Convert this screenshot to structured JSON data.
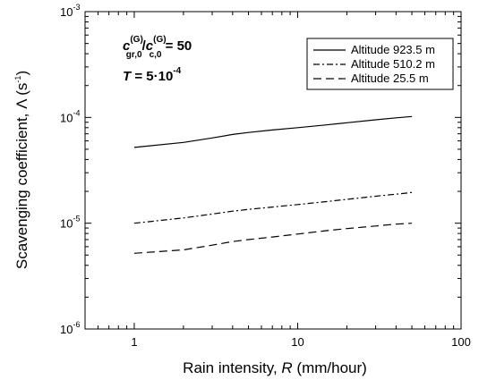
{
  "chart_data": {
    "type": "line",
    "xlabel": {
      "main": "Rain intensity, ",
      "var": "R",
      "unit": " (mm/hour)"
    },
    "ylabel": {
      "main": "Scavenging coefficient, Λ (s",
      "sup": "-1",
      "close": ")"
    },
    "x_scale": "log",
    "y_scale": "log",
    "xlim": [
      0.5,
      100
    ],
    "ylim": [
      1e-06,
      0.001
    ],
    "x_ticks": [
      {
        "value": 1,
        "label": "1"
      },
      {
        "value": 10,
        "label": "10"
      },
      {
        "value": 100,
        "label": "100"
      }
    ],
    "y_ticks": [
      {
        "value": 1e-06,
        "base": "10",
        "exp": "-6"
      },
      {
        "value": 1e-05,
        "base": "10",
        "exp": "-5"
      },
      {
        "value": 0.0001,
        "base": "10",
        "exp": "-4"
      },
      {
        "value": 0.001,
        "base": "10",
        "exp": "-3"
      }
    ],
    "grid": false,
    "legend_position": "top-right",
    "annotations": {
      "ratio": {
        "num_var": "c",
        "num_sub": "gr,0",
        "num_sup": "(G)",
        "slash": "/",
        "den_var": "c",
        "den_sub": "c,0",
        "den_sup": "(G)",
        "rest": " = 50"
      },
      "temp": {
        "var": "T",
        "rest": " = 5·10",
        "sup": "-4"
      }
    },
    "series": [
      {
        "name": "Altitude 923.5 m",
        "dash": "solid",
        "x": [
          1,
          2,
          3,
          4,
          5,
          7,
          10,
          15,
          20,
          30,
          40,
          50
        ],
        "y": [
          5.2e-05,
          5.8e-05,
          6.4e-05,
          6.9e-05,
          7.2e-05,
          7.6e-05,
          8e-05,
          8.5e-05,
          8.9e-05,
          9.5e-05,
          9.9e-05,
          0.000102
        ]
      },
      {
        "name": "Altitude 510.2 m",
        "dash": "dashdot",
        "x": [
          1,
          2,
          3,
          4,
          5,
          7,
          10,
          15,
          20,
          30,
          40,
          50
        ],
        "y": [
          1e-05,
          1.12e-05,
          1.22e-05,
          1.3e-05,
          1.35e-05,
          1.42e-05,
          1.5e-05,
          1.6e-05,
          1.68e-05,
          1.8e-05,
          1.88e-05,
          1.95e-05
        ]
      },
      {
        "name": "Altitude 25.5 m",
        "dash": "dashed",
        "x": [
          1,
          2,
          3,
          4,
          5,
          7,
          10,
          15,
          20,
          30,
          40,
          50
        ],
        "y": [
          5.2e-06,
          5.6e-06,
          6.2e-06,
          6.7e-06,
          7e-06,
          7.4e-06,
          7.9e-06,
          8.5e-06,
          8.9e-06,
          9.4e-06,
          9.8e-06,
          1e-05
        ]
      }
    ]
  }
}
